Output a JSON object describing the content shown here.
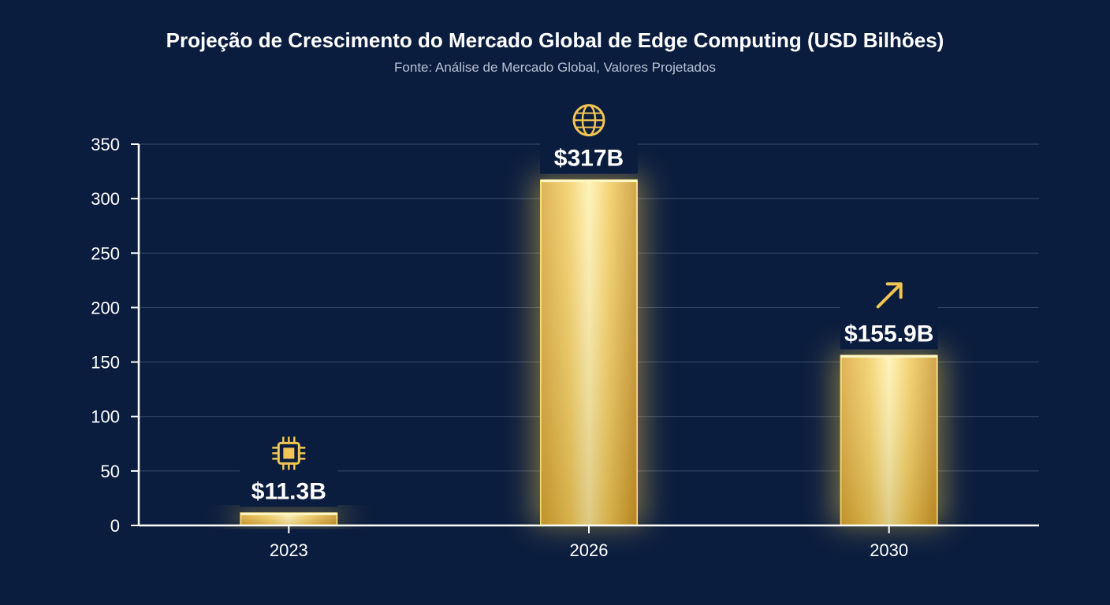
{
  "chart_data": {
    "type": "bar",
    "title": "Projeção de Crescimento do Mercado Global de Edge Computing (USD Bilhões)",
    "subtitle": "Fonte: Análise de Mercado Global, Valores Projetados",
    "categories": [
      "2023",
      "2026",
      "2030"
    ],
    "values": [
      11.3,
      317,
      155.9
    ],
    "data_labels": [
      "$11.3B",
      "$317B",
      "$155.9B"
    ],
    "icons": [
      "chip-icon",
      "globe-icon",
      "arrow-up-right-icon"
    ],
    "y_ticks": [
      0,
      50,
      100,
      150,
      200,
      250,
      300,
      350
    ],
    "ylim": [
      0,
      350
    ],
    "xlabel": "",
    "ylabel": "",
    "grid": true,
    "colors": {
      "background": "#0b1d3f",
      "bar_light": "#f7dd7a",
      "bar_dark": "#c9952a",
      "glow": "#ffd34d",
      "icon": "#f0c552",
      "grid": "#3b4d6e",
      "axis": "#ffffff"
    }
  }
}
